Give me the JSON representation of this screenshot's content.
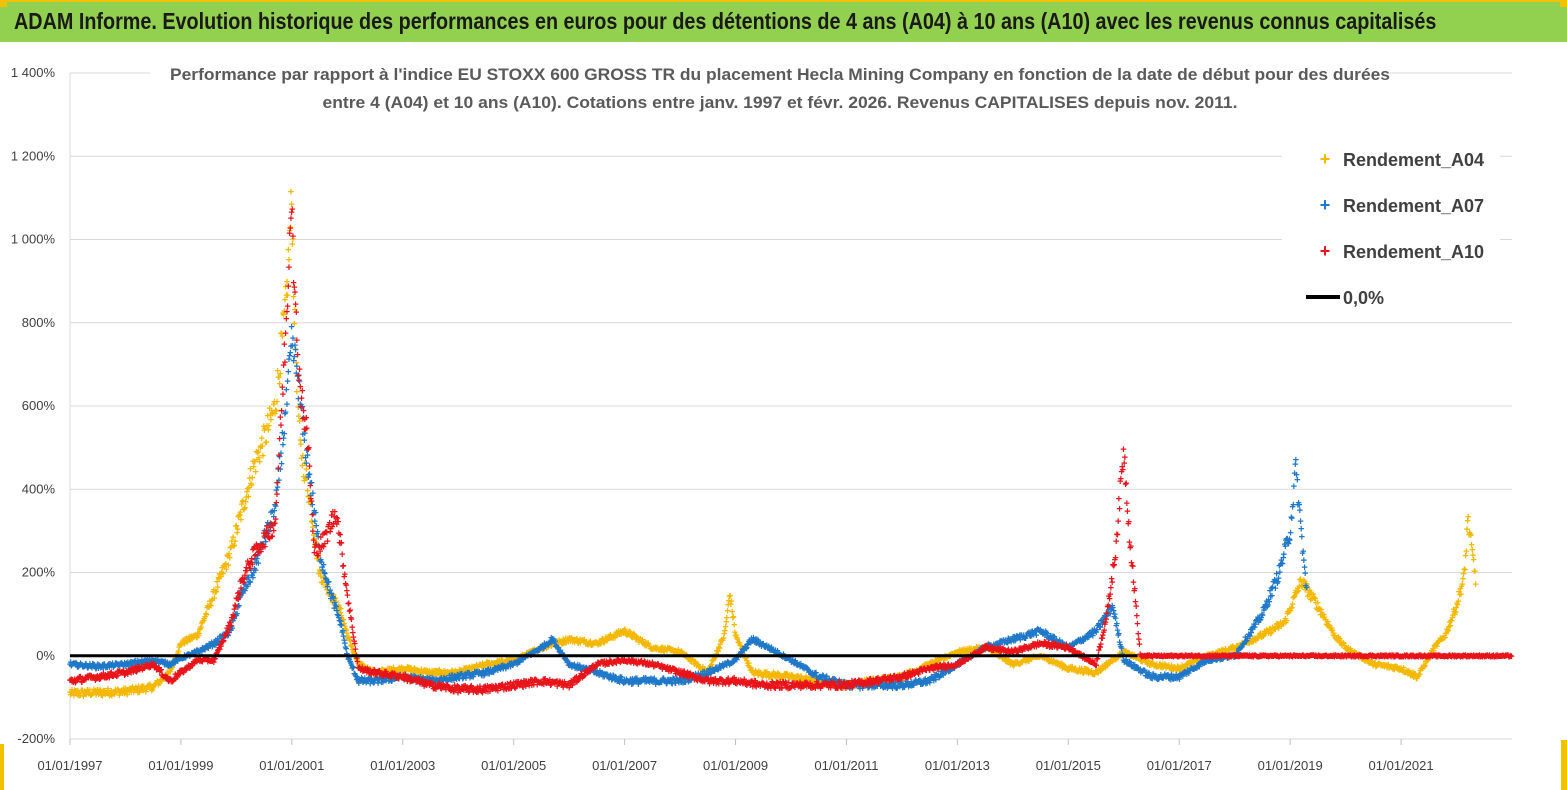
{
  "banner": {
    "title": "ADAM Informe. Evolution historique des performances en euros pour des détentions de 4 ans (A04) à 10 ans (A10) avec les revenus connus capitalisés"
  },
  "colors": {
    "banner_bg": "#92d050",
    "accent_yellow": "#f2c200",
    "a04": "#f5b800",
    "a07": "#1f78c8",
    "a10": "#e8141a",
    "zero_line": "#000000"
  },
  "chart_data": {
    "type": "scatter",
    "title_line1": "Performance par rapport à l'indice EU STOXX 600 GROSS TR  du placement Hecla Mining Company en fonction de la date de début pour des durées",
    "title_line2": "entre 4 (A04) et 10 ans (A10).  Cotations entre janv. 1997 et févr. 2026. Revenus CAPITALISES depuis nov. 2011.",
    "xlabel": "",
    "ylabel": "",
    "xlim": [
      1997.0,
      2023.0
    ],
    "ylim": [
      -200,
      1400
    ],
    "y_ticks": [
      -200,
      0,
      200,
      400,
      600,
      800,
      1000,
      1200,
      1400
    ],
    "y_tick_labels": [
      "-200%",
      "0%",
      "200%",
      "400%",
      "600%",
      "800%",
      "1 000%",
      "1 200%",
      "1 400%"
    ],
    "x_ticks": [
      1997,
      1999,
      2001,
      2003,
      2005,
      2007,
      2009,
      2011,
      2013,
      2015,
      2017,
      2019,
      2021
    ],
    "x_tick_labels": [
      "01/01/1997",
      "01/01/1999",
      "01/01/2001",
      "01/01/2003",
      "01/01/2005",
      "01/01/2007",
      "01/01/2009",
      "01/01/2011",
      "01/01/2013",
      "01/01/2015",
      "01/01/2017",
      "01/01/2019",
      "01/01/2021"
    ],
    "legend": [
      "Rendement_A04",
      "Rendement_A07",
      "Rendement_A10",
      "0,0%"
    ],
    "legend_position": "top-right",
    "series": [
      {
        "name": "Rendement_A04",
        "color": "#f5b800",
        "end": 2022.35,
        "points": [
          [
            1997.0,
            -90
          ],
          [
            1997.5,
            -88
          ],
          [
            1998.0,
            -85
          ],
          [
            1998.5,
            -75
          ],
          [
            1998.8,
            -40
          ],
          [
            1999.0,
            30
          ],
          [
            1999.3,
            50
          ],
          [
            1999.6,
            150
          ],
          [
            1999.9,
            250
          ],
          [
            2000.1,
            350
          ],
          [
            2000.3,
            450
          ],
          [
            2000.5,
            520
          ],
          [
            2000.7,
            600
          ],
          [
            2000.9,
            850
          ],
          [
            2001.0,
            1100
          ],
          [
            2001.05,
            800
          ],
          [
            2001.15,
            500
          ],
          [
            2001.3,
            400
          ],
          [
            2001.5,
            200
          ],
          [
            2001.7,
            150
          ],
          [
            2001.9,
            100
          ],
          [
            2002.0,
            50
          ],
          [
            2002.2,
            -20
          ],
          [
            2002.5,
            -40
          ],
          [
            2003.0,
            -30
          ],
          [
            2003.5,
            -40
          ],
          [
            2004.0,
            -40
          ],
          [
            2004.5,
            -20
          ],
          [
            2005.0,
            -10
          ],
          [
            2005.5,
            20
          ],
          [
            2006.0,
            40
          ],
          [
            2006.5,
            30
          ],
          [
            2007.0,
            60
          ],
          [
            2007.5,
            20
          ],
          [
            2008.0,
            10
          ],
          [
            2008.5,
            -40
          ],
          [
            2008.8,
            50
          ],
          [
            2008.9,
            150
          ],
          [
            2009.0,
            50
          ],
          [
            2009.3,
            -40
          ],
          [
            2010.0,
            -50
          ],
          [
            2010.5,
            -60
          ],
          [
            2011.0,
            -70
          ],
          [
            2011.5,
            -60
          ],
          [
            2012.0,
            -50
          ],
          [
            2012.5,
            -20
          ],
          [
            2013.0,
            10
          ],
          [
            2013.5,
            20
          ],
          [
            2014.0,
            -20
          ],
          [
            2014.5,
            0
          ],
          [
            2015.0,
            -30
          ],
          [
            2015.5,
            -40
          ],
          [
            2016.0,
            10
          ],
          [
            2016.5,
            -20
          ],
          [
            2017.0,
            -30
          ],
          [
            2017.5,
            0
          ],
          [
            2018.0,
            20
          ],
          [
            2018.5,
            50
          ],
          [
            2018.9,
            80
          ],
          [
            2019.2,
            180
          ],
          [
            2019.5,
            120
          ],
          [
            2019.8,
            50
          ],
          [
            2020.0,
            20
          ],
          [
            2020.5,
            -20
          ],
          [
            2021.0,
            -30
          ],
          [
            2021.3,
            -50
          ],
          [
            2021.6,
            20
          ],
          [
            2021.8,
            50
          ],
          [
            2022.0,
            120
          ],
          [
            2022.15,
            200
          ],
          [
            2022.2,
            330
          ],
          [
            2022.35,
            180
          ]
        ]
      },
      {
        "name": "Rendement_A07",
        "color": "#1f78c8",
        "end": 2019.3,
        "points": [
          [
            1997.0,
            -20
          ],
          [
            1997.5,
            -25
          ],
          [
            1998.0,
            -20
          ],
          [
            1998.5,
            -10
          ],
          [
            1998.8,
            -20
          ],
          [
            1999.0,
            -5
          ],
          [
            1999.3,
            10
          ],
          [
            1999.6,
            30
          ],
          [
            1999.9,
            60
          ],
          [
            2000.1,
            150
          ],
          [
            2000.3,
            200
          ],
          [
            2000.5,
            280
          ],
          [
            2000.7,
            350
          ],
          [
            2000.9,
            600
          ],
          [
            2001.0,
            750
          ],
          [
            2001.1,
            680
          ],
          [
            2001.2,
            550
          ],
          [
            2001.3,
            450
          ],
          [
            2001.5,
            250
          ],
          [
            2001.7,
            150
          ],
          [
            2001.9,
            70
          ],
          [
            2002.0,
            0
          ],
          [
            2002.2,
            -60
          ],
          [
            2002.5,
            -60
          ],
          [
            2003.0,
            -50
          ],
          [
            2003.5,
            -60
          ],
          [
            2004.0,
            -50
          ],
          [
            2004.5,
            -40
          ],
          [
            2005.0,
            -20
          ],
          [
            2005.5,
            20
          ],
          [
            2005.7,
            40
          ],
          [
            2006.0,
            -20
          ],
          [
            2006.5,
            -40
          ],
          [
            2007.0,
            -60
          ],
          [
            2007.5,
            -60
          ],
          [
            2008.0,
            -60
          ],
          [
            2008.5,
            -40
          ],
          [
            2009.0,
            -10
          ],
          [
            2009.3,
            40
          ],
          [
            2009.6,
            20
          ],
          [
            2010.0,
            -10
          ],
          [
            2010.5,
            -50
          ],
          [
            2011.0,
            -70
          ],
          [
            2011.5,
            -70
          ],
          [
            2012.0,
            -70
          ],
          [
            2012.5,
            -60
          ],
          [
            2013.0,
            -20
          ],
          [
            2013.5,
            20
          ],
          [
            2014.0,
            40
          ],
          [
            2014.5,
            60
          ],
          [
            2015.0,
            20
          ],
          [
            2015.5,
            60
          ],
          [
            2015.8,
            120
          ],
          [
            2016.0,
            -10
          ],
          [
            2016.5,
            -50
          ],
          [
            2017.0,
            -50
          ],
          [
            2017.5,
            -10
          ],
          [
            2018.0,
            0
          ],
          [
            2018.5,
            100
          ],
          [
            2018.8,
            200
          ],
          [
            2019.0,
            300
          ],
          [
            2019.1,
            450
          ],
          [
            2019.3,
            150
          ]
        ]
      },
      {
        "name": "Rendement_A10",
        "color": "#e8141a",
        "end": 2023.0,
        "points": [
          [
            1997.0,
            -60
          ],
          [
            1997.5,
            -50
          ],
          [
            1998.0,
            -40
          ],
          [
            1998.5,
            -20
          ],
          [
            1998.8,
            -60
          ],
          [
            1999.0,
            -40
          ],
          [
            1999.3,
            -10
          ],
          [
            1999.6,
            -10
          ],
          [
            1999.9,
            80
          ],
          [
            2000.1,
            180
          ],
          [
            2000.3,
            240
          ],
          [
            2000.5,
            280
          ],
          [
            2000.7,
            320
          ],
          [
            2000.9,
            800
          ],
          [
            2001.0,
            1150
          ],
          [
            2001.05,
            850
          ],
          [
            2001.15,
            650
          ],
          [
            2001.3,
            500
          ],
          [
            2001.4,
            250
          ],
          [
            2001.6,
            280
          ],
          [
            2001.8,
            350
          ],
          [
            2002.0,
            150
          ],
          [
            2002.2,
            -30
          ],
          [
            2002.5,
            -40
          ],
          [
            2003.0,
            -50
          ],
          [
            2003.5,
            -70
          ],
          [
            2004.0,
            -80
          ],
          [
            2004.5,
            -80
          ],
          [
            2005.0,
            -70
          ],
          [
            2005.5,
            -60
          ],
          [
            2006.0,
            -70
          ],
          [
            2006.5,
            -20
          ],
          [
            2007.0,
            -10
          ],
          [
            2007.5,
            -20
          ],
          [
            2008.0,
            -40
          ],
          [
            2008.5,
            -60
          ],
          [
            2009.0,
            -60
          ],
          [
            2009.5,
            -70
          ],
          [
            2010.0,
            -70
          ],
          [
            2010.5,
            -70
          ],
          [
            2011.0,
            -70
          ],
          [
            2011.5,
            -60
          ],
          [
            2012.0,
            -50
          ],
          [
            2012.5,
            -30
          ],
          [
            2013.0,
            -20
          ],
          [
            2013.5,
            20
          ],
          [
            2014.0,
            10
          ],
          [
            2014.5,
            30
          ],
          [
            2015.0,
            20
          ],
          [
            2015.5,
            -20
          ],
          [
            2015.7,
            100
          ],
          [
            2015.85,
            250
          ],
          [
            2016.0,
            500
          ],
          [
            2016.1,
            300
          ],
          [
            2016.2,
            150
          ],
          [
            2016.3,
            0
          ],
          [
            2017.0,
            0
          ],
          [
            2018.0,
            0
          ],
          [
            2019.0,
            0
          ],
          [
            2020.0,
            0
          ],
          [
            2021.0,
            0
          ],
          [
            2022.0,
            0
          ],
          [
            2023.0,
            0
          ]
        ]
      }
    ]
  }
}
